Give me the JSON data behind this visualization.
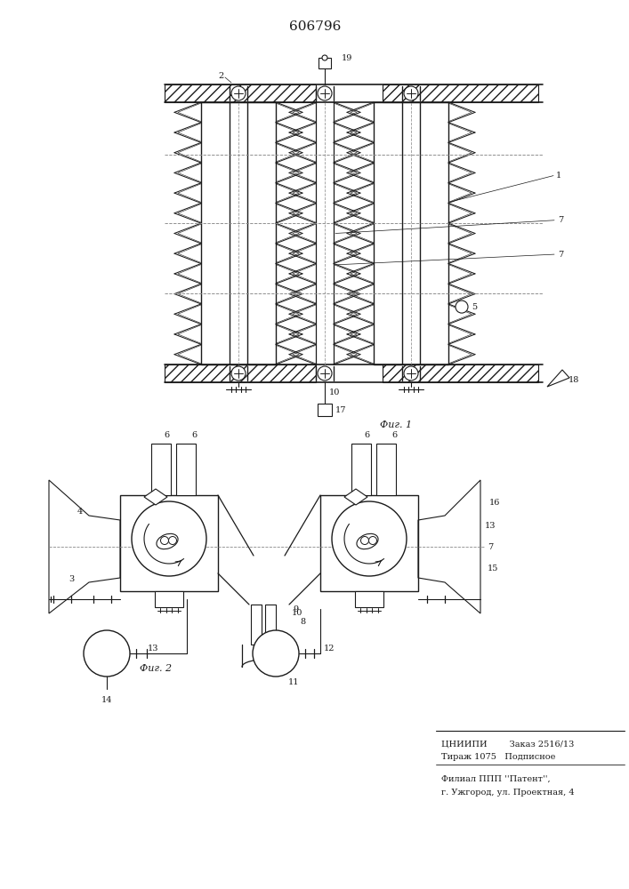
{
  "title": "606796",
  "bg_color": "#ffffff",
  "line_color": "#1a1a1a",
  "fig1_label": "Фиг. 1",
  "fig2_label": "Фиг. 2",
  "footer_line1": "ЦНИИПИ        Заказ 2516/13",
  "footer_line2": "Тираж 1075   Подписное",
  "footer_line3": "Филиал ППП ''Патент'',",
  "footer_line4": "г. Ужгород, ул. Проектная, 4"
}
